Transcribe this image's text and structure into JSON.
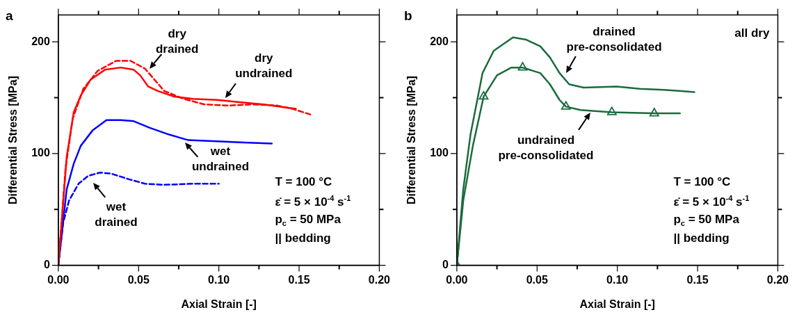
{
  "chart_data": [
    {
      "type": "line",
      "title": "a",
      "xlabel": "Axial Strain [-]",
      "ylabel": "Differential Stress [MPa]",
      "xlim": [
        0,
        0.2
      ],
      "ylim": [
        0,
        224
      ],
      "xticks": [
        {
          "value": 0,
          "label": "0.00"
        },
        {
          "value": 0.025,
          "label": null
        },
        {
          "value": 0.05,
          "label": "0.05"
        },
        {
          "value": 0.075,
          "label": null
        },
        {
          "value": 0.1,
          "label": "0.10"
        },
        {
          "value": 0.125,
          "label": null
        },
        {
          "value": 0.15,
          "label": "0.15"
        },
        {
          "value": 0.175,
          "label": null
        },
        {
          "value": 0.2,
          "label": "0.20"
        }
      ],
      "yticks": [
        {
          "value": 0,
          "label": "0"
        },
        {
          "value": 50,
          "label": null
        },
        {
          "value": 100,
          "label": "100"
        },
        {
          "value": 150,
          "label": null
        },
        {
          "value": 200,
          "label": "200"
        }
      ],
      "annotations": [
        "T = 100 °C",
        "ε̇ = 5 × 10$^{-4}$ s$^{-1}$",
        "p$_{c}$ = 50 MPa",
        "|| bedding"
      ],
      "series": [
        {
          "name": "dry drained",
          "color": "#ff0000",
          "line_style": "dashed",
          "x": [
            0,
            0.0045,
            0.0089,
            0.0156,
            0.0245,
            0.036,
            0.045,
            0.054,
            0.06,
            0.066,
            0.078,
            0.091,
            0.106,
            0.121,
            0.136,
            0.146,
            0.157
          ],
          "values": [
            0,
            87,
            131,
            158,
            174,
            183,
            183,
            176,
            166,
            156,
            149,
            144,
            143,
            144,
            143,
            140,
            135
          ]
        },
        {
          "name": "dry undrained",
          "color": "#ff0000",
          "line_style": "solid",
          "x": [
            0,
            0.0052,
            0.0096,
            0.014,
            0.02,
            0.029,
            0.039,
            0.047,
            0.051,
            0.056,
            0.062,
            0.072,
            0.084,
            0.099,
            0.113,
            0.128,
            0.143,
            0.148
          ],
          "values": [
            0,
            97,
            137,
            152,
            166,
            175,
            177,
            175,
            170,
            160,
            156,
            151,
            149,
            148,
            146,
            144,
            141,
            140
          ]
        },
        {
          "name": "wet drained",
          "color": "#0000ff",
          "line_style": "dashed",
          "x": [
            0,
            0.003,
            0.0067,
            0.0126,
            0.0185,
            0.026,
            0.033,
            0.044,
            0.054,
            0.066,
            0.084,
            0.1
          ],
          "values": [
            0,
            38,
            58,
            73,
            80,
            83,
            82,
            77,
            73,
            72,
            73,
            73
          ]
        },
        {
          "name": "wet undrained",
          "color": "#0000ff",
          "line_style": "solid",
          "x": [
            0,
            0.0052,
            0.0096,
            0.014,
            0.0215,
            0.03,
            0.039,
            0.047,
            0.057,
            0.069,
            0.081,
            0.099,
            0.113,
            0.133
          ],
          "values": [
            0,
            68,
            91,
            107,
            121,
            130,
            130,
            129,
            123,
            117,
            112,
            111,
            110,
            109
          ]
        }
      ]
    },
    {
      "type": "line",
      "title": "b",
      "xlabel": "Axial Strain [-]",
      "ylabel": "Differential Stress [MPa]",
      "xlim": [
        0,
        0.2
      ],
      "ylim": [
        0,
        224
      ],
      "xticks": [
        {
          "value": 0,
          "label": "0.00"
        },
        {
          "value": 0.025,
          "label": null
        },
        {
          "value": 0.05,
          "label": "0.05"
        },
        {
          "value": 0.075,
          "label": null
        },
        {
          "value": 0.1,
          "label": "0.10"
        },
        {
          "value": 0.125,
          "label": null
        },
        {
          "value": 0.15,
          "label": "0.15"
        },
        {
          "value": 0.175,
          "label": null
        },
        {
          "value": 0.2,
          "label": "0.20"
        }
      ],
      "yticks": [
        {
          "value": 0,
          "label": "0"
        },
        {
          "value": 50,
          "label": null
        },
        {
          "value": 100,
          "label": "100"
        },
        {
          "value": 150,
          "label": null
        },
        {
          "value": 200,
          "label": "200"
        }
      ],
      "annotations": [
        "all dry",
        "T = 100 °C",
        "ε̇ = 5 × 10$^{-4}$ s$^{-1}$",
        "p$_{c}$ = 50 MPa",
        "|| bedding"
      ],
      "series": [
        {
          "name": "drained pre-consolidated",
          "color": "#1a6b3c",
          "line_style": "solid",
          "x": [
            0,
            0.004,
            0.0085,
            0.016,
            0.023,
            0.035,
            0.043,
            0.052,
            0.058,
            0.064,
            0.07,
            0.079,
            0.0996,
            0.114,
            0.129,
            0.14,
            0.148
          ],
          "values": [
            0,
            68,
            117,
            172,
            192,
            204,
            202,
            196,
            186,
            172,
            162,
            159,
            160,
            158,
            157,
            156,
            155
          ]
        },
        {
          "name": "undrained pre-consolidated",
          "color": "#1a6b3c",
          "line_style": "solid",
          "x": [
            0,
            0.004,
            0.01,
            0.0167,
            0.025,
            0.034,
            0.041,
            0.052,
            0.058,
            0.064,
            0.068,
            0.077,
            0.0966,
            0.123,
            0.139
          ],
          "values": [
            0,
            58,
            107,
            151,
            170,
            177,
            177,
            172,
            162,
            148,
            142,
            139,
            137,
            136,
            136
          ]
        },
        {
          "type": "scatter",
          "color": "#1a6b3c",
          "marker": "triangle",
          "x": [
            0,
            0.0167,
            0.041,
            0.068,
            0.0966,
            0.123
          ],
          "values": [
            0,
            151,
            177,
            142,
            137,
            136
          ]
        }
      ]
    }
  ]
}
